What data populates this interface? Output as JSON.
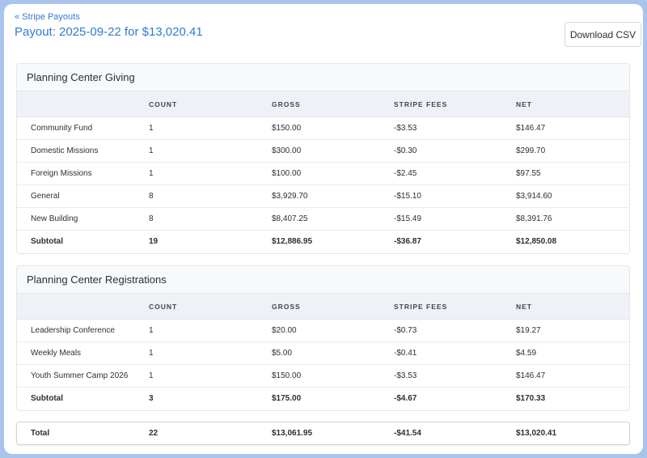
{
  "back_link": "« Stripe Payouts",
  "title": "Payout: 2025-09-22 for $13,020.41",
  "download_label": "Download CSV",
  "columns": [
    "",
    "COUNT",
    "GROSS",
    "STRIPE FEES",
    "NET"
  ],
  "sections": [
    {
      "title": "Planning Center Giving",
      "rows": [
        {
          "name": "Community Fund",
          "count": "1",
          "gross": "$150.00",
          "fees": "-$3.53",
          "net": "$146.47"
        },
        {
          "name": "Domestic Missions",
          "count": "1",
          "gross": "$300.00",
          "fees": "-$0.30",
          "net": "$299.70"
        },
        {
          "name": "Foreign Missions",
          "count": "1",
          "gross": "$100.00",
          "fees": "-$2.45",
          "net": "$97.55"
        },
        {
          "name": "General",
          "count": "8",
          "gross": "$3,929.70",
          "fees": "-$15.10",
          "net": "$3,914.60"
        },
        {
          "name": "New Building",
          "count": "8",
          "gross": "$8,407.25",
          "fees": "-$15.49",
          "net": "$8,391.76"
        }
      ],
      "subtotal": {
        "name": "Subtotal",
        "count": "19",
        "gross": "$12,886.95",
        "fees": "-$36.87",
        "net": "$12,850.08"
      }
    },
    {
      "title": "Planning Center Registrations",
      "rows": [
        {
          "name": "Leadership Conference",
          "count": "1",
          "gross": "$20.00",
          "fees": "-$0.73",
          "net": "$19.27"
        },
        {
          "name": "Weekly Meals",
          "count": "1",
          "gross": "$5.00",
          "fees": "-$0.41",
          "net": "$4.59"
        },
        {
          "name": "Youth Summer Camp 2026",
          "count": "1",
          "gross": "$150.00",
          "fees": "-$3.53",
          "net": "$146.47"
        }
      ],
      "subtotal": {
        "name": "Subtotal",
        "count": "3",
        "gross": "$175.00",
        "fees": "-$4.67",
        "net": "$170.33"
      }
    }
  ],
  "total": {
    "name": "Total",
    "count": "22",
    "gross": "$13,061.95",
    "fees": "-$41.54",
    "net": "$13,020.41"
  }
}
